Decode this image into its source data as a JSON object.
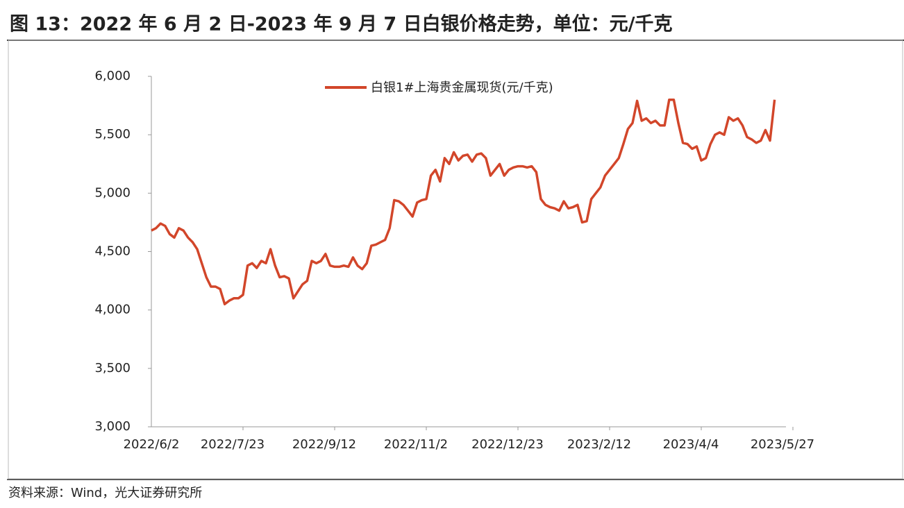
{
  "chart_data": {
    "type": "line",
    "title": "图 13：2022 年 6 月 2 日-2023 年 9 月 7 日白银价格走势，单位：元/千克",
    "source": "资料来源：Wind，光大证券研究所",
    "categories": [
      "2022/6/2",
      null,
      null,
      null,
      null,
      null,
      null,
      null,
      null,
      null,
      null,
      null,
      null,
      null,
      null,
      null,
      null,
      null,
      null,
      null,
      "2022/7/23",
      null,
      null,
      null,
      null,
      null,
      null,
      null,
      null,
      null,
      null,
      null,
      null,
      null,
      null,
      null,
      null,
      null,
      null,
      null,
      "2022/9/12",
      null,
      null,
      null,
      null,
      null,
      null,
      null,
      null,
      null,
      null,
      null,
      null,
      null,
      null,
      null,
      null,
      null,
      null,
      null,
      "2022/11/2",
      null,
      null,
      null,
      null,
      null,
      null,
      null,
      null,
      null,
      null,
      null,
      null,
      null,
      null,
      null,
      null,
      null,
      null,
      null,
      "2022/12/23",
      null,
      null,
      null,
      null,
      null,
      null,
      null,
      null,
      null,
      null,
      null,
      null,
      null,
      null,
      null,
      null,
      null,
      null,
      null,
      "2023/2/12",
      null,
      null,
      null,
      null,
      null,
      null,
      null,
      null,
      null,
      null,
      null,
      null,
      null,
      null,
      null,
      null,
      null,
      null,
      null,
      "2023/4/4",
      null,
      null,
      null,
      null,
      null,
      null,
      null,
      null,
      null,
      null,
      null,
      null,
      null,
      null,
      null,
      null,
      null,
      null,
      null,
      "2023/5/27"
    ],
    "series": [
      {
        "name": "白银1#上海贵金属现货(元/千克)",
        "color": "#d2462a",
        "values": [
          4680,
          4700,
          4740,
          4720,
          4650,
          4620,
          4700,
          4680,
          4620,
          4580,
          4520,
          4400,
          4280,
          4200,
          4200,
          4180,
          4050,
          4080,
          4100,
          4100,
          4130,
          4380,
          4400,
          4360,
          4420,
          4400,
          4520,
          4380,
          4280,
          4290,
          4270,
          4100,
          4160,
          4220,
          4250,
          4420,
          4400,
          4420,
          4480,
          4380,
          4370,
          4370,
          4380,
          4370,
          4450,
          4380,
          4350,
          4400,
          4550,
          4560,
          4580,
          4600,
          4700,
          4940,
          4930,
          4900,
          4850,
          4800,
          4920,
          4940,
          4950,
          5150,
          5200,
          5100,
          5300,
          5250,
          5350,
          5280,
          5320,
          5330,
          5270,
          5330,
          5340,
          5300,
          5150,
          5200,
          5250,
          5150,
          5200,
          5220,
          5230,
          5230,
          5220,
          5230,
          5180,
          4950,
          4900,
          4880,
          4870,
          4850,
          4930,
          4870,
          4880,
          4900,
          4750,
          4760,
          4950,
          5000,
          5050,
          5150,
          5200,
          5250,
          5300,
          5420,
          5550,
          5600,
          5790,
          5620,
          5640,
          5600,
          5620,
          5580,
          5580,
          5800,
          5800,
          5600,
          5430,
          5420,
          5380,
          5400,
          5280,
          5300,
          5420,
          5500,
          5520,
          5500,
          5650,
          5620,
          5640,
          5580,
          5480,
          5460,
          5430,
          5450,
          5540,
          5450,
          5800,
          null,
          null,
          null,
          null
        ]
      }
    ],
    "ylim": [
      3000,
      6000
    ],
    "yticks": [
      {
        "value": 3000,
        "label": "3,000"
      },
      {
        "value": 3500,
        "label": "3,500"
      },
      {
        "value": 4000,
        "label": "4,000"
      },
      {
        "value": 4500,
        "label": "4,500"
      },
      {
        "value": 5000,
        "label": "5,000"
      },
      {
        "value": 5500,
        "label": "5,500"
      },
      {
        "value": 6000,
        "label": "6,000"
      }
    ],
    "grid": false,
    "legend": "top"
  }
}
